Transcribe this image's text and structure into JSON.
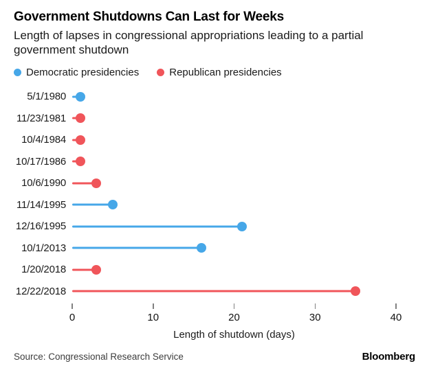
{
  "header": {
    "title": "Government Shutdowns Can Last for Weeks",
    "subtitle": "Length of lapses in congressional appropriations leading to a partial government shutdown"
  },
  "legend": {
    "items": [
      {
        "label": "Democratic presidencies",
        "party": "dem"
      },
      {
        "label": "Republican presidencies",
        "party": "rep"
      }
    ]
  },
  "chart_data": {
    "type": "bar",
    "subtype": "horizontal-lollipop",
    "categories": [
      "5/1/1980",
      "11/23/1981",
      "10/4/1984",
      "10/17/1986",
      "10/6/1990",
      "11/14/1995",
      "12/16/1995",
      "10/1/2013",
      "1/20/2018",
      "12/22/2018"
    ],
    "values": [
      1,
      1,
      1,
      1,
      3,
      5,
      21,
      16,
      3,
      35
    ],
    "party": [
      "dem",
      "rep",
      "rep",
      "rep",
      "rep",
      "dem",
      "dem",
      "dem",
      "rep",
      "rep"
    ],
    "colors": {
      "dem": "#46A7E8",
      "rep": "#F0555A"
    },
    "xlabel": "Length of shutdown (days)",
    "xlim": [
      0,
      40
    ],
    "xticks": [
      0,
      10,
      20,
      30,
      40
    ],
    "grid": false,
    "legend_position": "top"
  },
  "footer": {
    "source": "Source: Congressional Research Service",
    "brand": "Bloomberg"
  }
}
